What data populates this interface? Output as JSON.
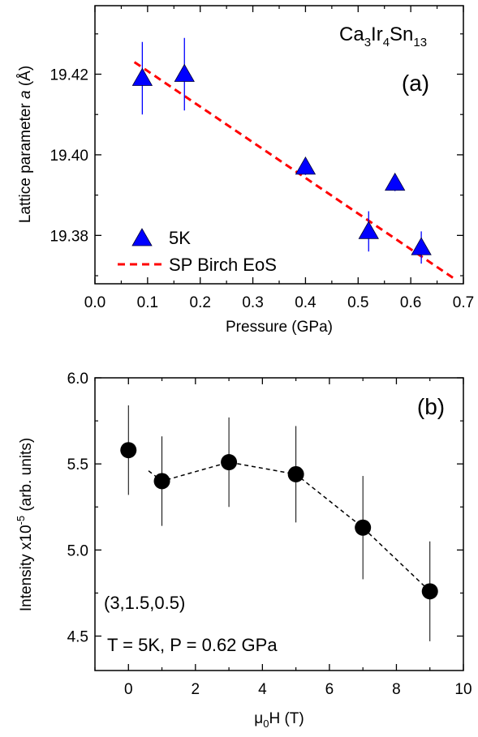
{
  "chart_data": [
    {
      "panel": "a",
      "type": "scatter",
      "panel_label": "(a)",
      "compound": {
        "base": "Ca",
        "n1": "3",
        "el2": "Ir",
        "n2": "4",
        "el3": "Sn",
        "n3": "13"
      },
      "xlabel": "Pressure (GPa)",
      "ylabel": {
        "text": "Lattice parameter ",
        "italic": "a",
        "unit": " (Å)"
      },
      "xlim": [
        0.0,
        0.7
      ],
      "ylim": [
        19.368,
        19.437
      ],
      "xticks": [
        "0.0",
        "0.1",
        "0.2",
        "0.3",
        "0.4",
        "0.5",
        "0.6",
        "0.7"
      ],
      "yticks": [
        "19.38",
        "19.40",
        "19.42"
      ],
      "series": [
        {
          "name": "5K",
          "marker": "triangle",
          "color": "#0000ff",
          "x": [
            0.09,
            0.17,
            0.4,
            0.52,
            0.57,
            0.62
          ],
          "y": [
            19.419,
            19.42,
            19.397,
            19.381,
            19.393,
            19.377
          ],
          "err": [
            0.009,
            0.009,
            0.002,
            0.005,
            0.002,
            0.004
          ]
        },
        {
          "name": "SP Birch EoS",
          "style": "dashed",
          "color": "#ff0000",
          "x": [
            0.075,
            0.68
          ],
          "y": [
            19.423,
            19.3695
          ]
        }
      ],
      "legend_position": "bottom-left"
    },
    {
      "panel": "b",
      "type": "scatter",
      "panel_label": "(b)",
      "xlabel": {
        "mu": "μ",
        "sub": "0",
        "rest": "H (T)"
      },
      "ylabel": {
        "text": "Intensity x10",
        "sup": "-5",
        "rest": " (arb. units)"
      },
      "xlim": [
        -1,
        10
      ],
      "ylim": [
        4.3,
        6.0
      ],
      "xticks": [
        "0",
        "2",
        "4",
        "6",
        "8",
        "10"
      ],
      "yticks": [
        "4.5",
        "5.0",
        "5.5",
        "6.0"
      ],
      "series": [
        {
          "marker": "circle",
          "color": "#000000",
          "x": [
            0,
            1,
            3,
            5,
            7,
            9
          ],
          "y": [
            5.58,
            5.4,
            5.51,
            5.44,
            5.13,
            4.76
          ],
          "err": [
            0.26,
            0.26,
            0.26,
            0.28,
            0.3,
            0.29
          ]
        }
      ],
      "guide_line": {
        "style": "dashed",
        "color": "#000000",
        "x": [
          0.6,
          1,
          3,
          5,
          7,
          9
        ],
        "y": [
          5.46,
          5.4,
          5.51,
          5.44,
          5.13,
          4.76
        ]
      },
      "annotations": [
        "(3,1.5,0.5)",
        "T = 5K, P = 0.62 GPa"
      ]
    }
  ]
}
